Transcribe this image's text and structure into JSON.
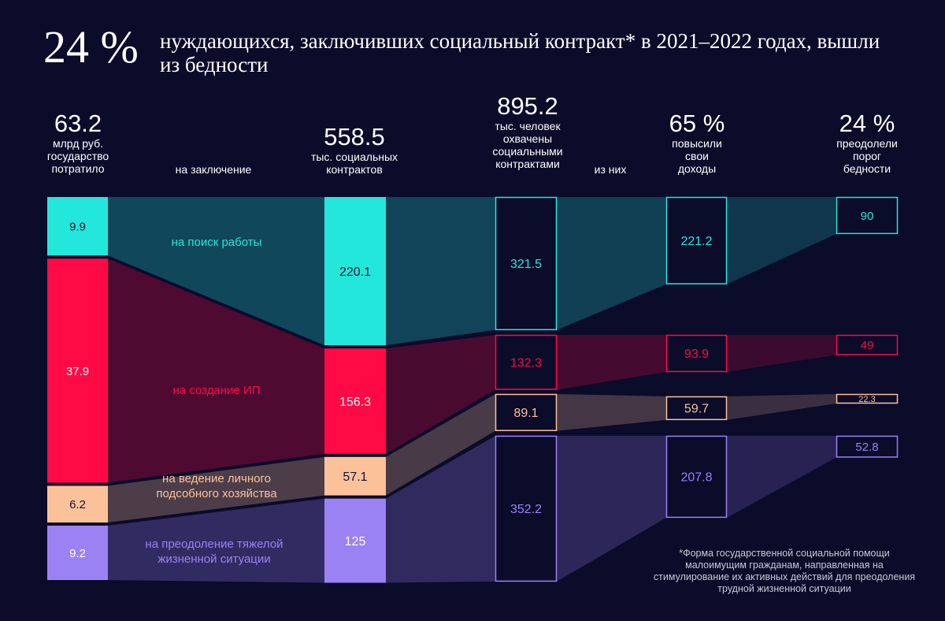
{
  "header": {
    "big_pct": "24 %",
    "headline": "нуждающихся, заключивших социальный контракт* в 2021–2022 годах, вышли из бедности"
  },
  "columns": {
    "spent": {
      "value": "63.2",
      "caption": "млрд руб. государство потратило"
    },
    "for_conclusion": "на заключение",
    "contracts": {
      "value": "558.5",
      "caption": "тыс. социальных контрактов"
    },
    "covered": {
      "value": "895.2",
      "caption": "тыс. человек охвачены социальными контрактами"
    },
    "of_them": "из них",
    "income": {
      "value": "65 %",
      "caption": "повысили свои доходы"
    },
    "poverty": {
      "value": "24 %",
      "caption": "преодолели порог бедности"
    }
  },
  "footnote": "*Форма государственной социальной помощи малоимущим гражданам, направленная на стимулирование их активных действий для преодоления трудной жизненной ситуации",
  "colors": {
    "background": "#0b0b2a",
    "job": "#24e7dc",
    "business": "#ff0a44",
    "farm": "#fbc29a",
    "hardship": "#9b82f3"
  },
  "chart_data": {
    "type": "sankey",
    "stages": [
      "млрд руб. государство потратило",
      "тыс. социальных контрактов",
      "тыс. человек охвачены социальными контрактами",
      "повысили свои доходы",
      "преодолели порог бедности"
    ],
    "categories": [
      {
        "key": "job",
        "label": "на поиск работы",
        "spent": 9.9,
        "contracts": 220.1,
        "people": 321.5,
        "income_up": 221.2,
        "out_of_poverty": 90
      },
      {
        "key": "business",
        "label": "на создание ИП",
        "spent": 37.9,
        "contracts": 156.3,
        "people": 132.3,
        "income_up": 93.9,
        "out_of_poverty": 49
      },
      {
        "key": "farm",
        "label": "на ведение личного подсобного хозяйства",
        "spent": 6.2,
        "contracts": 57.1,
        "people": 89.1,
        "income_up": 59.7,
        "out_of_poverty": 22.3
      },
      {
        "key": "hardship",
        "label": "на преодоление тяжелой жизненной ситуации",
        "spent": 9.2,
        "contracts": 125,
        "people": 352.2,
        "income_up": 207.8,
        "out_of_poverty": 52.8
      }
    ],
    "value_labels": {
      "spent": [
        "9.9",
        "37.9",
        "6.2",
        "9.2"
      ],
      "contracts": [
        "220.1",
        "156.3",
        "57.1",
        "125"
      ],
      "people": [
        "321.5",
        "132.3",
        "89.1",
        "352.2"
      ],
      "income_up": [
        "221.2",
        "93.9",
        "59.7",
        "207.8"
      ],
      "out_of_poverty": [
        "90",
        "49",
        "22.3",
        "52.8"
      ]
    }
  }
}
